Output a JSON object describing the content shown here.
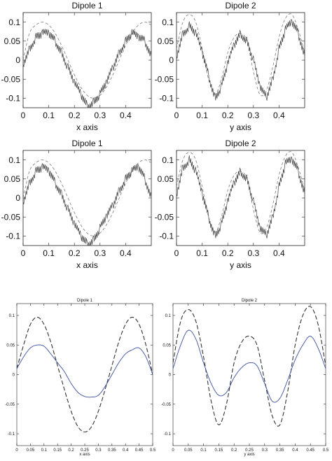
{
  "chart_data": [
    {
      "type": "line",
      "title": "Dipole 1",
      "xlabel": "x axis",
      "ylabel": "",
      "xlim": [
        0,
        0.5
      ],
      "ylim": [
        -0.125,
        0.125
      ],
      "grid": false,
      "legend": "none",
      "xticks": [
        "0",
        "0.1",
        "0.2",
        "0.3",
        "0.4"
      ],
      "yticks": [
        "0.1",
        "0.05",
        "0",
        "-0.05",
        "-0.1"
      ],
      "series": [
        {
          "style": "dashed",
          "color": "#888888",
          "x": [
            0,
            0.025,
            0.05,
            0.075,
            0.1,
            0.125,
            0.15,
            0.175,
            0.2,
            0.225,
            0.25,
            0.275,
            0.3,
            0.325,
            0.35,
            0.375,
            0.4,
            0.425,
            0.45,
            0.475,
            0.5
          ],
          "y": [
            0.0,
            0.0707,
            0.0924,
            0.1,
            0.0924,
            0.0707,
            0.0383,
            0.0,
            -0.0383,
            -0.0707,
            -0.0924,
            -0.1,
            -0.0924,
            -0.0707,
            -0.0383,
            0.0,
            0.0383,
            0.0707,
            0.0924,
            0.1,
            0.0924
          ]
        },
        {
          "style": "solid-noisy",
          "color": "#444444",
          "x": [
            0,
            0.025,
            0.05,
            0.075,
            0.1,
            0.125,
            0.15,
            0.175,
            0.2,
            0.225,
            0.25,
            0.275,
            0.3,
            0.325,
            0.35,
            0.375,
            0.4,
            0.425,
            0.45,
            0.475,
            0.5
          ],
          "y": [
            -0.01,
            0.03,
            0.06,
            0.07,
            0.07,
            0.05,
            0.02,
            -0.02,
            -0.06,
            -0.09,
            -0.12,
            -0.11,
            -0.09,
            -0.06,
            -0.02,
            0.02,
            0.05,
            0.07,
            0.06,
            0.05,
            0.01
          ]
        }
      ]
    },
    {
      "type": "line",
      "title": "Dipole 2",
      "xlabel": "y axis",
      "ylabel": "",
      "xlim": [
        0,
        0.5
      ],
      "ylim": [
        -0.125,
        0.125
      ],
      "grid": false,
      "legend": "none",
      "xticks": [
        "0",
        "0.1",
        "0.2",
        "0.3",
        "0.4"
      ],
      "yticks": [
        "0.1",
        "0.05",
        "0",
        "-0.05",
        "-0.1"
      ],
      "series": [
        {
          "style": "dashed",
          "color": "#888888",
          "x": [
            0,
            0.025,
            0.05,
            0.075,
            0.1,
            0.125,
            0.15,
            0.175,
            0.2,
            0.225,
            0.25,
            0.275,
            0.3,
            0.325,
            0.35,
            0.375,
            0.4,
            0.425,
            0.45,
            0.475,
            0.5
          ],
          "y": [
            0.03,
            0.1,
            0.12,
            0.1,
            0.03,
            -0.05,
            -0.09,
            -0.05,
            0.02,
            0.06,
            0.07,
            0.05,
            -0.03,
            -0.09,
            -0.08,
            -0.02,
            0.06,
            0.11,
            0.12,
            0.08,
            0.02
          ]
        },
        {
          "style": "solid-noisy",
          "color": "#444444",
          "x": [
            0,
            0.025,
            0.05,
            0.075,
            0.1,
            0.125,
            0.15,
            0.175,
            0.2,
            0.225,
            0.25,
            0.275,
            0.3,
            0.325,
            0.35,
            0.375,
            0.4,
            0.425,
            0.45,
            0.475,
            0.5
          ],
          "y": [
            0.01,
            0.07,
            0.09,
            0.07,
            0.02,
            -0.04,
            -0.1,
            -0.07,
            -0.01,
            0.04,
            0.07,
            0.05,
            0.0,
            -0.07,
            -0.1,
            -0.05,
            0.03,
            0.08,
            0.1,
            0.07,
            0.01
          ]
        }
      ]
    },
    {
      "type": "line",
      "title": "Dipole 1",
      "xlabel": "x axis",
      "ylabel": "",
      "xlim": [
        0,
        0.5
      ],
      "ylim": [
        -0.125,
        0.125
      ],
      "grid": false,
      "legend": "none",
      "xticks": [
        "0",
        "0.1",
        "0.2",
        "0.3",
        "0.4"
      ],
      "yticks": [
        "0.1",
        "0.05",
        "0",
        "-0.05",
        "-0.1"
      ],
      "series": [
        {
          "style": "dashed",
          "color": "#888888",
          "x": [
            0,
            0.025,
            0.05,
            0.075,
            0.1,
            0.125,
            0.15,
            0.175,
            0.2,
            0.225,
            0.25,
            0.275,
            0.3,
            0.325,
            0.35,
            0.375,
            0.4,
            0.425,
            0.45,
            0.475,
            0.5
          ],
          "y": [
            0.0,
            0.0707,
            0.0924,
            0.1,
            0.0924,
            0.0707,
            0.0383,
            0.0,
            -0.0383,
            -0.0707,
            -0.0924,
            -0.1,
            -0.0924,
            -0.0707,
            -0.0383,
            0.0,
            0.0383,
            0.0707,
            0.0924,
            0.1,
            0.0924
          ]
        },
        {
          "style": "solid-noisy",
          "color": "#444444",
          "x": [
            0,
            0.025,
            0.05,
            0.075,
            0.1,
            0.125,
            0.15,
            0.175,
            0.2,
            0.225,
            0.25,
            0.275,
            0.3,
            0.325,
            0.35,
            0.375,
            0.4,
            0.425,
            0.45,
            0.475,
            0.5
          ],
          "y": [
            -0.01,
            0.04,
            0.07,
            0.08,
            0.07,
            0.04,
            0.01,
            -0.03,
            -0.07,
            -0.1,
            -0.12,
            -0.11,
            -0.08,
            -0.05,
            -0.02,
            0.02,
            0.05,
            0.07,
            0.08,
            0.05,
            0.0
          ]
        }
      ]
    },
    {
      "type": "line",
      "title": "Dipole 2",
      "xlabel": "y axis",
      "ylabel": "",
      "xlim": [
        0,
        0.5
      ],
      "ylim": [
        -0.125,
        0.125
      ],
      "grid": false,
      "legend": "none",
      "xticks": [
        "0",
        "0.1",
        "0.2",
        "0.3",
        "0.4"
      ],
      "yticks": [
        "0.1",
        "0.05",
        "0",
        "-0.05",
        "-0.1"
      ],
      "series": [
        {
          "style": "dashed",
          "color": "#888888",
          "x": [
            0,
            0.025,
            0.05,
            0.075,
            0.1,
            0.125,
            0.15,
            0.175,
            0.2,
            0.225,
            0.25,
            0.275,
            0.3,
            0.325,
            0.35,
            0.375,
            0.4,
            0.425,
            0.45,
            0.475,
            0.5
          ],
          "y": [
            0.03,
            0.1,
            0.12,
            0.1,
            0.03,
            -0.05,
            -0.09,
            -0.05,
            0.02,
            0.06,
            0.07,
            0.05,
            -0.03,
            -0.09,
            -0.08,
            -0.02,
            0.06,
            0.11,
            0.12,
            0.08,
            0.02
          ]
        },
        {
          "style": "solid-noisy",
          "color": "#444444",
          "x": [
            0,
            0.025,
            0.05,
            0.075,
            0.1,
            0.125,
            0.15,
            0.175,
            0.2,
            0.225,
            0.25,
            0.275,
            0.3,
            0.325,
            0.35,
            0.375,
            0.4,
            0.425,
            0.45,
            0.475,
            0.5
          ],
          "y": [
            0.01,
            0.08,
            0.1,
            0.07,
            0.01,
            -0.05,
            -0.1,
            -0.07,
            -0.01,
            0.04,
            0.07,
            0.05,
            -0.01,
            -0.08,
            -0.1,
            -0.05,
            0.03,
            0.09,
            0.1,
            0.07,
            0.01
          ]
        }
      ]
    },
    {
      "type": "line",
      "title": "Dipole 1",
      "xlabel": "x axis",
      "ylabel": "",
      "xlim": [
        0,
        0.5
      ],
      "ylim": [
        -0.12,
        0.12
      ],
      "grid": false,
      "legend": "none",
      "xticks": [
        "0",
        "0.05",
        "0.1",
        "0.15",
        "0.2",
        "0.25",
        "0.3",
        "0.35",
        "0.4",
        "0.45",
        "0.5"
      ],
      "yticks": [
        "0.1",
        "0.05",
        "0",
        "-0.05",
        "-0.1"
      ],
      "series": [
        {
          "style": "dashed",
          "color": "#333333",
          "x": [
            0,
            0.025,
            0.05,
            0.075,
            0.1,
            0.125,
            0.15,
            0.175,
            0.2,
            0.225,
            0.25,
            0.275,
            0.3,
            0.325,
            0.35,
            0.375,
            0.4,
            0.425,
            0.45,
            0.475,
            0.5
          ],
          "y": [
            0.01,
            0.05,
            0.085,
            0.097,
            0.085,
            0.055,
            0.015,
            -0.025,
            -0.062,
            -0.088,
            -0.097,
            -0.088,
            -0.062,
            -0.025,
            0.015,
            0.055,
            0.085,
            0.097,
            0.085,
            0.05,
            0.0
          ]
        },
        {
          "style": "solid",
          "color": "#3a4fa0",
          "x": [
            0,
            0.025,
            0.05,
            0.075,
            0.1,
            0.125,
            0.15,
            0.175,
            0.2,
            0.225,
            0.25,
            0.275,
            0.3,
            0.325,
            0.35,
            0.375,
            0.4,
            0.425,
            0.45,
            0.475,
            0.5
          ],
          "y": [
            0.01,
            0.03,
            0.045,
            0.05,
            0.048,
            0.035,
            0.02,
            0.005,
            -0.015,
            -0.03,
            -0.037,
            -0.038,
            -0.035,
            -0.02,
            0.0,
            0.02,
            0.035,
            0.042,
            0.045,
            0.03,
            0.0
          ]
        }
      ]
    },
    {
      "type": "line",
      "title": "Dipole 2",
      "xlabel": "y axis",
      "ylabel": "",
      "xlim": [
        0,
        0.5
      ],
      "ylim": [
        -0.12,
        0.12
      ],
      "grid": false,
      "legend": "none",
      "xticks": [
        "0",
        "0.05",
        "0.1",
        "0.15",
        "0.2",
        "0.25",
        "0.3",
        "0.35",
        "0.4",
        "0.45",
        "0.5"
      ],
      "yticks": [
        "0.1",
        "0.05",
        "0",
        "-0.05",
        "-0.1"
      ],
      "series": [
        {
          "style": "dashed",
          "color": "#333333",
          "x": [
            0,
            0.025,
            0.05,
            0.075,
            0.1,
            0.125,
            0.15,
            0.175,
            0.2,
            0.225,
            0.25,
            0.275,
            0.3,
            0.325,
            0.35,
            0.375,
            0.4,
            0.425,
            0.45,
            0.475,
            0.5
          ],
          "y": [
            0.02,
            0.09,
            0.11,
            0.09,
            0.03,
            -0.045,
            -0.085,
            -0.05,
            0.02,
            0.055,
            0.065,
            0.05,
            -0.01,
            -0.07,
            -0.085,
            -0.03,
            0.05,
            0.1,
            0.115,
            0.085,
            0.015
          ]
        },
        {
          "style": "solid",
          "color": "#3a4fa0",
          "x": [
            0,
            0.025,
            0.05,
            0.075,
            0.1,
            0.125,
            0.15,
            0.175,
            0.2,
            0.225,
            0.25,
            0.275,
            0.3,
            0.325,
            0.35,
            0.375,
            0.4,
            0.425,
            0.45,
            0.475,
            0.5
          ],
          "y": [
            0.01,
            0.05,
            0.075,
            0.06,
            0.02,
            -0.015,
            -0.035,
            -0.03,
            -0.005,
            0.012,
            0.02,
            0.015,
            -0.015,
            -0.045,
            -0.04,
            -0.01,
            0.025,
            0.05,
            0.065,
            0.045,
            0.01
          ]
        }
      ]
    }
  ]
}
